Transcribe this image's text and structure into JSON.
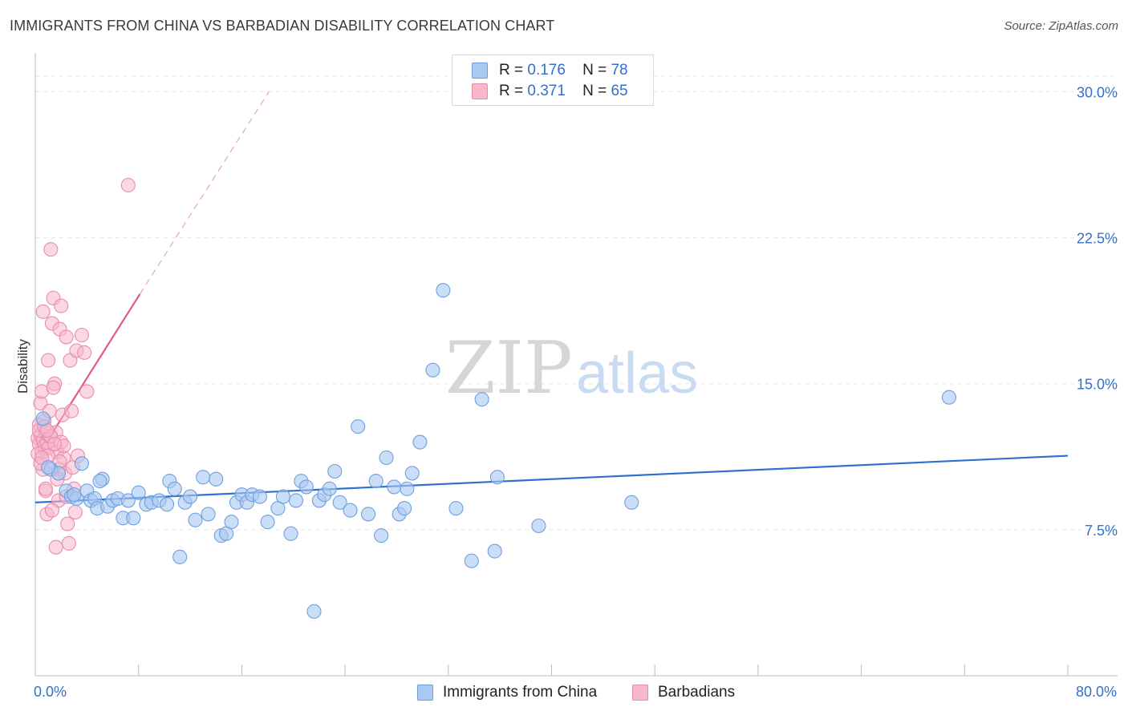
{
  "header": {
    "title": "IMMIGRANTS FROM CHINA VS BARBADIAN DISABILITY CORRELATION CHART",
    "source": "Source: ZipAtlas.com"
  },
  "watermark": {
    "zip": "ZIP",
    "atlas": "atlas"
  },
  "legend_top": [
    {
      "r_label": "R =",
      "r_value": "0.176",
      "n_label": "N =",
      "n_value": "78"
    },
    {
      "r_label": "R =",
      "r_value": "0.371",
      "n_label": "N =",
      "n_value": "65"
    }
  ],
  "legend_bottom": [
    {
      "label": "Immigrants from China"
    },
    {
      "label": "Barbadians"
    }
  ],
  "axis": {
    "x_min_label": "0.0%",
    "x_max_label": "80.0%"
  },
  "colors": {
    "china_fill": "#a9c8f2",
    "china_stroke": "#6f9fde",
    "china_line": "#2f6fce",
    "barb_fill": "#f7b7cc",
    "barb_stroke": "#e98cac",
    "barb_line": "#e05a8a",
    "grid": "#e6e6e6",
    "axis_text": "#3370cc"
  },
  "chart_data": {
    "type": "scatter",
    "title": "IMMIGRANTS FROM CHINA VS BARBADIAN DISABILITY CORRELATION CHART",
    "xlabel": "",
    "ylabel": "Disability",
    "xlim": [
      0,
      80
    ],
    "ylim": [
      0,
      31.5
    ],
    "y_ticks": [
      7.5,
      15.0,
      22.5,
      30.0
    ],
    "y_tick_labels": [
      "7.5%",
      "15.0%",
      "22.5%",
      "30.0%"
    ],
    "series": [
      {
        "name": "Immigrants from China",
        "R": 0.176,
        "N": 78,
        "trend": {
          "x": [
            0,
            80
          ],
          "y": [
            8.9,
            11.3
          ],
          "dashed_extension": false
        },
        "points": [
          [
            0.6,
            13.2
          ],
          [
            1.2,
            10.6
          ],
          [
            1.8,
            10.4
          ],
          [
            2.4,
            9.5
          ],
          [
            2.8,
            9.2
          ],
          [
            3.2,
            9.1
          ],
          [
            3.6,
            10.9
          ],
          [
            4.0,
            9.5
          ],
          [
            4.3,
            9.0
          ],
          [
            4.6,
            9.1
          ],
          [
            4.8,
            8.6
          ],
          [
            5.2,
            10.1
          ],
          [
            5.6,
            8.7
          ],
          [
            6.0,
            9.0
          ],
          [
            6.4,
            9.1
          ],
          [
            6.8,
            8.1
          ],
          [
            7.2,
            9.0
          ],
          [
            7.6,
            8.1
          ],
          [
            8.0,
            9.4
          ],
          [
            8.6,
            8.8
          ],
          [
            9.0,
            8.9
          ],
          [
            9.6,
            9.0
          ],
          [
            10.2,
            8.8
          ],
          [
            10.4,
            10.0
          ],
          [
            10.8,
            9.6
          ],
          [
            11.2,
            6.1
          ],
          [
            11.6,
            8.9
          ],
          [
            12.0,
            9.2
          ],
          [
            12.4,
            8.0
          ],
          [
            13.0,
            10.2
          ],
          [
            13.4,
            8.3
          ],
          [
            14.0,
            10.1
          ],
          [
            14.4,
            7.2
          ],
          [
            14.8,
            7.3
          ],
          [
            15.2,
            7.9
          ],
          [
            15.6,
            8.9
          ],
          [
            16.0,
            9.3
          ],
          [
            16.4,
            8.9
          ],
          [
            16.8,
            9.3
          ],
          [
            17.4,
            9.2
          ],
          [
            18.0,
            7.9
          ],
          [
            18.8,
            8.6
          ],
          [
            19.2,
            9.2
          ],
          [
            19.8,
            7.3
          ],
          [
            20.2,
            9.0
          ],
          [
            20.6,
            10.0
          ],
          [
            21.0,
            9.7
          ],
          [
            21.6,
            3.3
          ],
          [
            22.0,
            9.0
          ],
          [
            22.4,
            9.3
          ],
          [
            22.8,
            9.6
          ],
          [
            23.2,
            10.5
          ],
          [
            23.6,
            8.9
          ],
          [
            24.4,
            8.5
          ],
          [
            25.0,
            12.8
          ],
          [
            25.8,
            8.3
          ],
          [
            26.4,
            10.0
          ],
          [
            26.8,
            7.2
          ],
          [
            27.2,
            11.2
          ],
          [
            27.8,
            9.7
          ],
          [
            28.2,
            8.3
          ],
          [
            28.6,
            8.6
          ],
          [
            28.8,
            9.6
          ],
          [
            29.2,
            10.4
          ],
          [
            29.8,
            12.0
          ],
          [
            30.8,
            15.7
          ],
          [
            31.6,
            19.8
          ],
          [
            32.6,
            8.6
          ],
          [
            33.8,
            5.9
          ],
          [
            34.6,
            14.2
          ],
          [
            35.6,
            6.4
          ],
          [
            35.8,
            10.2
          ],
          [
            39.0,
            7.7
          ],
          [
            46.2,
            8.9
          ],
          [
            70.8,
            14.3
          ],
          [
            1.0,
            10.7
          ],
          [
            5.0,
            10.0
          ],
          [
            3.0,
            9.3
          ]
        ]
      },
      {
        "name": "Barbadians",
        "R": 0.371,
        "N": 65,
        "trend": {
          "x": [
            0.3,
            8.1
          ],
          "y": [
            11.4,
            19.6
          ],
          "dashed_to": [
            18.1,
            30.0
          ]
        },
        "points": [
          [
            0.2,
            12.2
          ],
          [
            0.3,
            11.9
          ],
          [
            0.4,
            12.4
          ],
          [
            0.5,
            11.5
          ],
          [
            0.6,
            12.1
          ],
          [
            0.7,
            11.8
          ],
          [
            0.8,
            12.5
          ],
          [
            0.9,
            12.0
          ],
          [
            1.0,
            11.7
          ],
          [
            1.1,
            12.3
          ],
          [
            0.3,
            12.9
          ],
          [
            0.4,
            14.0
          ],
          [
            0.5,
            14.6
          ],
          [
            0.6,
            10.6
          ],
          [
            0.7,
            13.1
          ],
          [
            0.8,
            9.5
          ],
          [
            0.9,
            8.3
          ],
          [
            1.0,
            16.2
          ],
          [
            1.2,
            21.9
          ],
          [
            1.3,
            18.1
          ],
          [
            1.4,
            19.4
          ],
          [
            1.5,
            15.0
          ],
          [
            1.6,
            12.5
          ],
          [
            1.7,
            11.5
          ],
          [
            1.8,
            10.6
          ],
          [
            1.9,
            17.8
          ],
          [
            2.0,
            19.0
          ],
          [
            2.1,
            13.4
          ],
          [
            2.2,
            11.2
          ],
          [
            2.3,
            10.4
          ],
          [
            2.4,
            17.4
          ],
          [
            2.5,
            7.8
          ],
          [
            2.6,
            6.8
          ],
          [
            2.7,
            16.2
          ],
          [
            2.8,
            13.6
          ],
          [
            2.9,
            10.7
          ],
          [
            3.0,
            9.6
          ],
          [
            3.1,
            8.4
          ],
          [
            3.2,
            16.7
          ],
          [
            3.3,
            11.3
          ],
          [
            3.6,
            17.5
          ],
          [
            3.8,
            16.6
          ],
          [
            4.0,
            14.6
          ],
          [
            7.2,
            25.2
          ],
          [
            0.2,
            11.4
          ],
          [
            0.3,
            12.6
          ],
          [
            0.4,
            10.9
          ],
          [
            0.6,
            18.7
          ],
          [
            0.8,
            9.6
          ],
          [
            1.0,
            11.3
          ],
          [
            1.2,
            12.3
          ],
          [
            1.4,
            14.8
          ],
          [
            1.6,
            6.6
          ],
          [
            1.8,
            9.0
          ],
          [
            2.0,
            12.0
          ],
          [
            1.3,
            8.5
          ],
          [
            2.2,
            11.8
          ],
          [
            0.5,
            11.2
          ],
          [
            0.7,
            12.8
          ],
          [
            1.1,
            13.6
          ],
          [
            1.5,
            11.9
          ],
          [
            1.7,
            10.1
          ],
          [
            2.4,
            9.2
          ],
          [
            0.9,
            12.6
          ],
          [
            1.9,
            11.0
          ]
        ]
      }
    ]
  }
}
